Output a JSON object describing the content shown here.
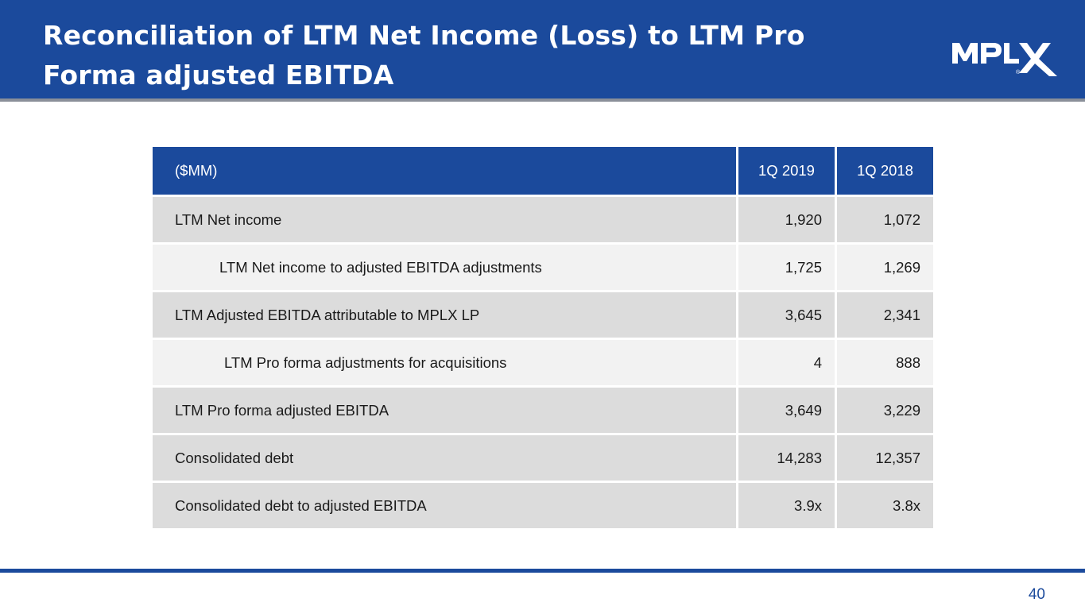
{
  "header": {
    "title": "Reconciliation of LTM Net Income (Loss) to LTM Pro Forma adjusted EBITDA",
    "logo_text": "MPLX"
  },
  "table": {
    "columns": [
      "($MM)",
      "1Q 2019",
      "1Q 2018"
    ],
    "rows": [
      {
        "label": "LTM Net income",
        "v2019": "1,920",
        "v2018": "1,072"
      },
      {
        "label": "LTM Net income to adjusted EBITDA adjustments",
        "v2019": "1,725",
        "v2018": "1,269"
      },
      {
        "label": "LTM Adjusted EBITDA attributable to MPLX LP",
        "v2019": "3,645",
        "v2018": "2,341"
      },
      {
        "label": "LTM Pro forma adjustments for acquisitions",
        "v2019": "4",
        "v2018": "888"
      },
      {
        "label": "LTM Pro forma adjusted EBITDA",
        "v2019": "3,649",
        "v2018": "3,229"
      },
      {
        "label": "Consolidated debt",
        "v2019": "14,283",
        "v2018": "12,357"
      },
      {
        "label": "Consolidated debt to adjusted EBITDA",
        "v2019": "3.9x",
        "v2018": "3.8x"
      }
    ]
  },
  "footer": {
    "page_number": "40"
  },
  "colors": {
    "brand_blue": "#1b4a9c",
    "row_dark": "#dcdcdc",
    "row_light": "#f2f2f2"
  }
}
